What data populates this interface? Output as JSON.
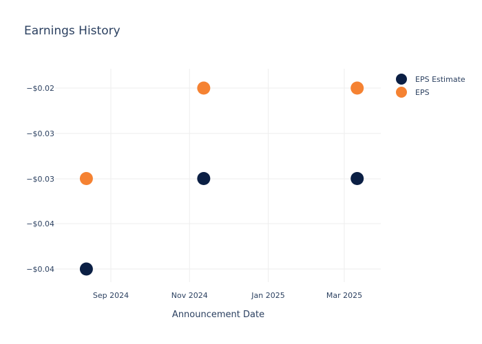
{
  "chart_data": {
    "type": "scatter",
    "title": "Earnings History",
    "xlabel": "Announcement Date",
    "ylabel": "",
    "x_ticks": [
      "Sep 2024",
      "Nov 2024",
      "Jan 2025",
      "Mar 2025"
    ],
    "y_ticks": [
      "−$0.02",
      "−$0.03",
      "−$0.03",
      "−$0.04",
      "−$0.04"
    ],
    "dates": [
      "2024-08-13",
      "2024-11-12",
      "2025-03-11"
    ],
    "series": [
      {
        "name": "EPS Estimate",
        "color": "#0b1f44",
        "values": [
          -0.04,
          -0.03,
          -0.03
        ]
      },
      {
        "name": "EPS",
        "color": "#f58232",
        "values": [
          -0.03,
          -0.02,
          -0.02
        ]
      }
    ],
    "legend_position": "top-right",
    "grid": true
  }
}
